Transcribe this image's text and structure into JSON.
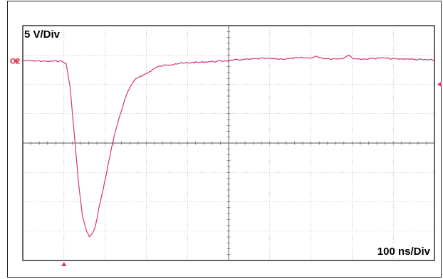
{
  "chart_data": {
    "type": "line",
    "channel_label": "C2",
    "vertical_scale": "5 V/Div",
    "horizontal_scale": "100 ns/Div",
    "divisions": {
      "x": 10,
      "y": 8
    },
    "xlim_div": [
      0,
      10
    ],
    "ylim_div": [
      -4,
      4
    ],
    "grid": true,
    "colors": {
      "trace": "#d6337a",
      "grid": "#9a9a9a",
      "marker": "#e0306e",
      "channel_label": "#e02020"
    },
    "series": [
      {
        "x": [
          0,
          0.3,
          0.6,
          0.9,
          1.05,
          1.15,
          1.25,
          1.35,
          1.45,
          1.55,
          1.62,
          1.68,
          1.75,
          1.8,
          1.85,
          1.95,
          2.05,
          2.15,
          2.25,
          2.35,
          2.45,
          2.55,
          2.65,
          2.75,
          2.85,
          2.95,
          3.05,
          3.15,
          3.25,
          3.35,
          3.5,
          3.7,
          3.9,
          4.1,
          4.3,
          4.5,
          4.7,
          4.9,
          5.1,
          5.3,
          5.5,
          5.7,
          5.9,
          6.1,
          6.3,
          6.5,
          6.7,
          6.9,
          7.05,
          7.15,
          7.25,
          7.4,
          7.6,
          7.8,
          7.9,
          8.0,
          8.1,
          8.3,
          8.5,
          8.7,
          8.9,
          9.1,
          9.3,
          9.5,
          9.7,
          10.0
        ],
        "y": [
          2.8,
          2.8,
          2.78,
          2.8,
          2.72,
          1.9,
          0.3,
          -1.3,
          -2.5,
          -3.0,
          -3.2,
          -3.1,
          -2.9,
          -2.6,
          -2.2,
          -1.6,
          -0.9,
          -0.2,
          0.4,
          0.9,
          1.35,
          1.75,
          2.0,
          2.2,
          2.28,
          2.33,
          2.4,
          2.5,
          2.58,
          2.62,
          2.66,
          2.7,
          2.72,
          2.74,
          2.75,
          2.77,
          2.78,
          2.8,
          2.82,
          2.84,
          2.85,
          2.87,
          2.88,
          2.87,
          2.86,
          2.88,
          2.9,
          2.9,
          2.91,
          2.95,
          2.9,
          2.88,
          2.87,
          2.9,
          3.0,
          2.9,
          2.87,
          2.86,
          2.88,
          2.9,
          2.88,
          2.86,
          2.87,
          2.85,
          2.84,
          2.82
        ]
      }
    ],
    "trigger_level_div": 2.0,
    "trigger_time_div": 1.0
  }
}
